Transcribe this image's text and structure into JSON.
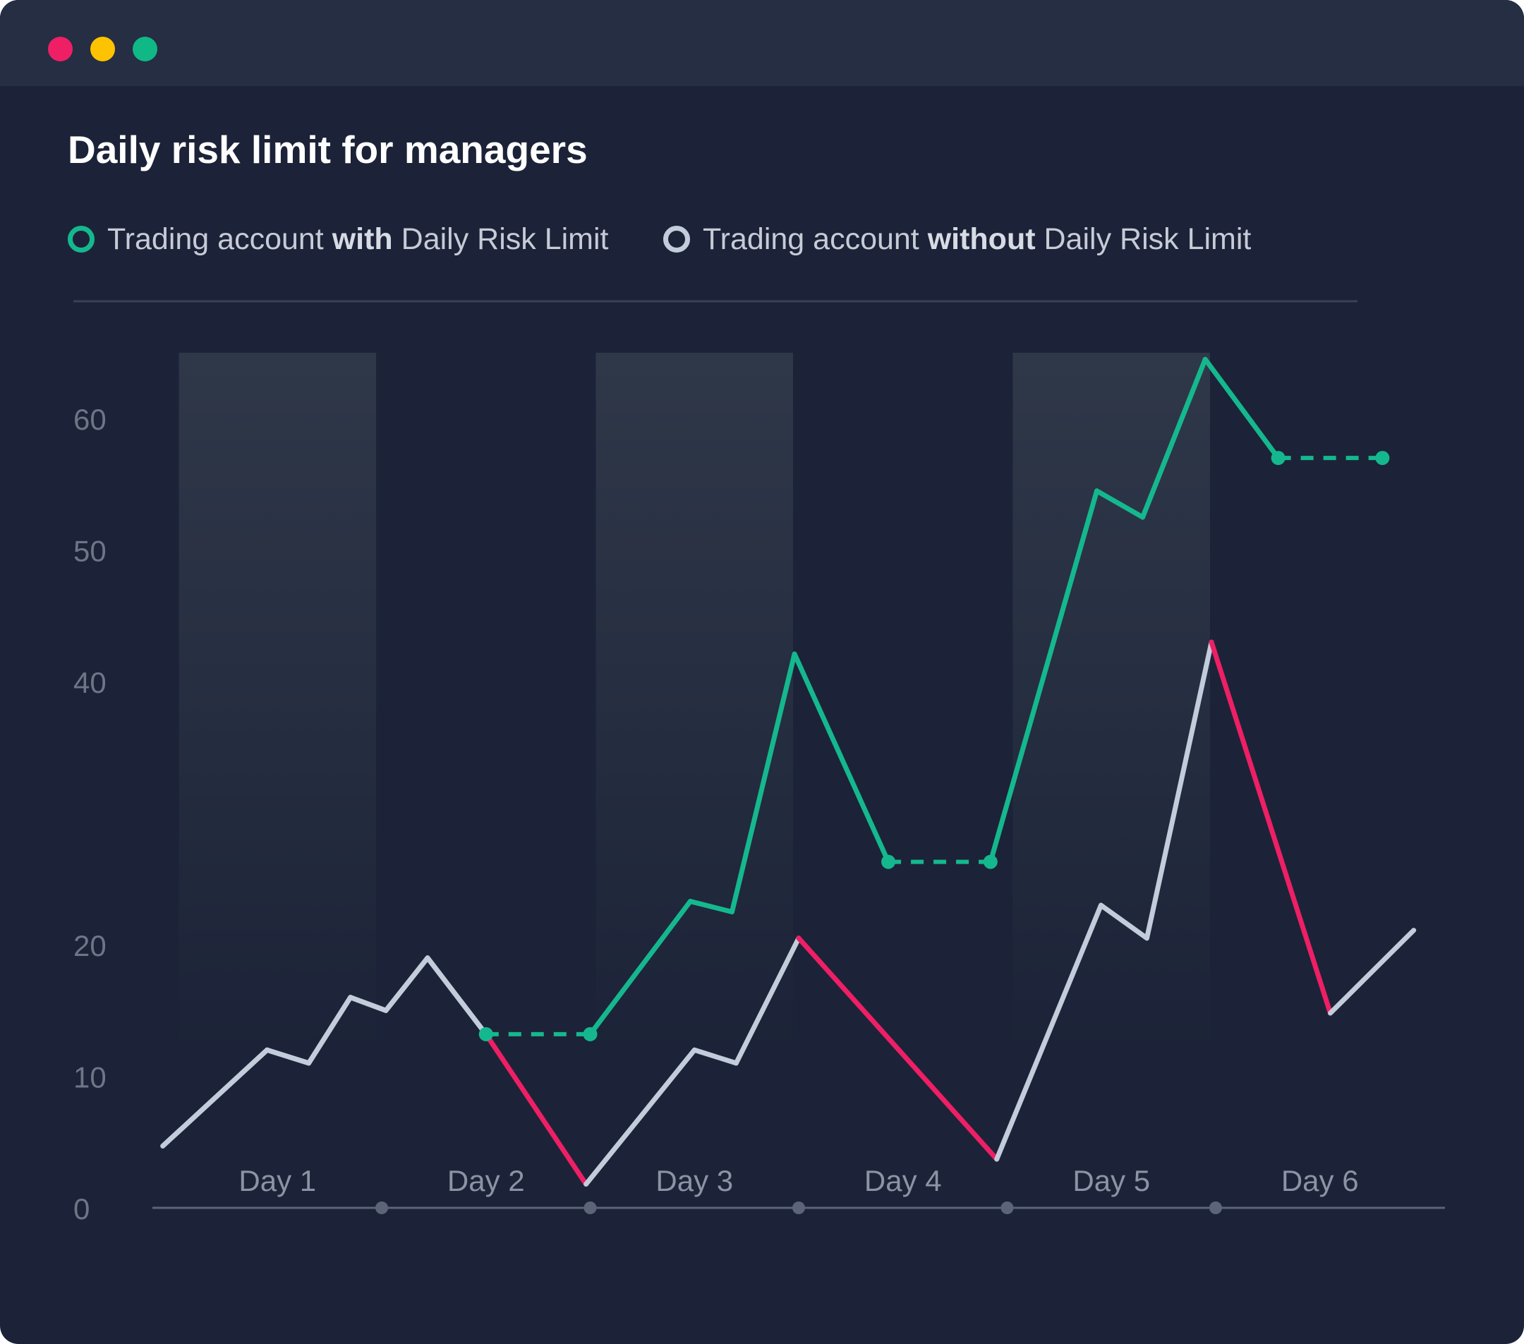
{
  "window": {
    "controls": [
      {
        "name": "close",
        "color": "#ee1f65"
      },
      {
        "name": "minimize",
        "color": "#fec300"
      },
      {
        "name": "maximize",
        "color": "#10b886"
      }
    ]
  },
  "colors": {
    "background": "#1c2338",
    "titlebar": "#252e42",
    "with_limit": "#15b88e",
    "without_limit": "#c3ccdb",
    "loss": "#ee1f65",
    "axis": "#5c6577",
    "tick_label": "#6d7587",
    "day_label": "#8b93a4",
    "band": "#2f3849"
  },
  "chart_data": {
    "type": "line",
    "title": "Daily risk limit for managers",
    "legend_position": "top-left",
    "ylim": [
      0,
      65
    ],
    "y_ticks": [
      0,
      10,
      20,
      40,
      50,
      60
    ],
    "x_range": [
      0.4,
      6.6
    ],
    "categories": [
      "Day 1",
      "Day 2",
      "Day 3",
      "Day 4",
      "Day 5",
      "Day 6"
    ],
    "day_dividers": [
      1.5,
      2.5,
      3.5,
      4.5,
      5.5
    ],
    "shaded_days": [
      1,
      3,
      5
    ],
    "series": [
      {
        "name": "Trading account with Daily Risk Limit",
        "legend_parts": [
          "Trading account ",
          "with",
          " Daily Risk Limit"
        ],
        "color": "#15b88e",
        "points": [
          {
            "x": 0.45,
            "y": 4.7
          },
          {
            "x": 0.95,
            "y": 12
          },
          {
            "x": 1.15,
            "y": 11
          },
          {
            "x": 1.35,
            "y": 16
          },
          {
            "x": 1.52,
            "y": 15
          },
          {
            "x": 1.72,
            "y": 19
          },
          {
            "x": 2.0,
            "y": 13.2
          },
          {
            "x": 2.5,
            "y": 13.2
          },
          {
            "x": 2.98,
            "y": 23.3
          },
          {
            "x": 3.18,
            "y": 22.5
          },
          {
            "x": 3.48,
            "y": 42.1
          },
          {
            "x": 3.93,
            "y": 26.3
          },
          {
            "x": 4.42,
            "y": 26.3
          },
          {
            "x": 4.93,
            "y": 54.5
          },
          {
            "x": 5.15,
            "y": 52.5
          },
          {
            "x": 5.45,
            "y": 64.5
          },
          {
            "x": 5.8,
            "y": 57
          },
          {
            "x": 6.3,
            "y": 57
          }
        ],
        "flat_segments": [
          [
            6,
            7
          ],
          [
            11,
            12
          ],
          [
            16,
            17
          ]
        ]
      },
      {
        "name": "Trading account without Daily Risk Limit",
        "legend_parts": [
          "Trading account ",
          "without",
          " Daily Risk Limit"
        ],
        "color": "#c3ccdb",
        "points": [
          {
            "x": 0.45,
            "y": 4.7
          },
          {
            "x": 0.95,
            "y": 12
          },
          {
            "x": 1.15,
            "y": 11
          },
          {
            "x": 1.35,
            "y": 16
          },
          {
            "x": 1.52,
            "y": 15
          },
          {
            "x": 1.72,
            "y": 19
          },
          {
            "x": 2.0,
            "y": 13.2
          },
          {
            "x": 2.48,
            "y": 1.8
          },
          {
            "x": 3.0,
            "y": 12
          },
          {
            "x": 3.2,
            "y": 11
          },
          {
            "x": 3.5,
            "y": 20.5
          },
          {
            "x": 4.45,
            "y": 3.7
          },
          {
            "x": 4.95,
            "y": 23
          },
          {
            "x": 5.17,
            "y": 20.5
          },
          {
            "x": 5.48,
            "y": 43
          },
          {
            "x": 6.05,
            "y": 14.8
          },
          {
            "x": 6.45,
            "y": 21.1
          }
        ],
        "loss_segments": [
          [
            6,
            7
          ],
          [
            10,
            11
          ],
          [
            14,
            15
          ]
        ]
      }
    ]
  }
}
